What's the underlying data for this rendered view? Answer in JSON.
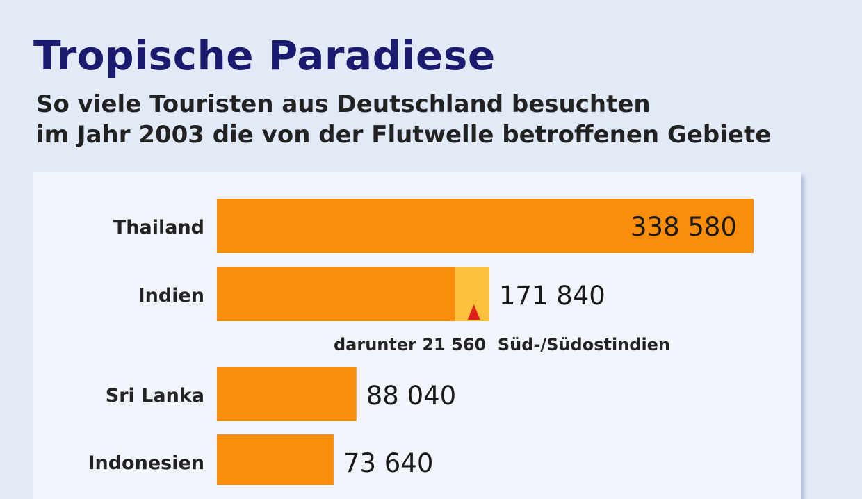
{
  "title": "Tropische Paradiese",
  "subtitle_line1": "So viele Touristen aus Deutschland besuchten",
  "subtitle_line2": "im Jahr 2003 die von der Flutwelle betroffenen Gebiete",
  "colors": {
    "bar": "#fb8d0c",
    "highlight": "#fdc13c",
    "marker": "#e0201a",
    "title": "#1a1a6e"
  },
  "chart_data": {
    "type": "bar",
    "orientation": "horizontal",
    "title": "Tropische Paradiese",
    "subtitle": "So viele Touristen aus Deutschland besuchten im Jahr 2003 die von der Flutwelle betroffenen Gebiete",
    "categories": [
      "Thailand",
      "Indien",
      "Sri Lanka",
      "Indonesien"
    ],
    "values": [
      338580,
      171840,
      88040,
      73640
    ],
    "value_labels": [
      "338 580",
      "171 840",
      "88 040",
      "73 640"
    ],
    "xlim": [
      0,
      338580
    ],
    "grid": false,
    "legend": "none",
    "annotations": [
      {
        "category": "Indien",
        "value": 21560,
        "text": "darunter 21 560  Süd-/Südostindien"
      }
    ]
  }
}
